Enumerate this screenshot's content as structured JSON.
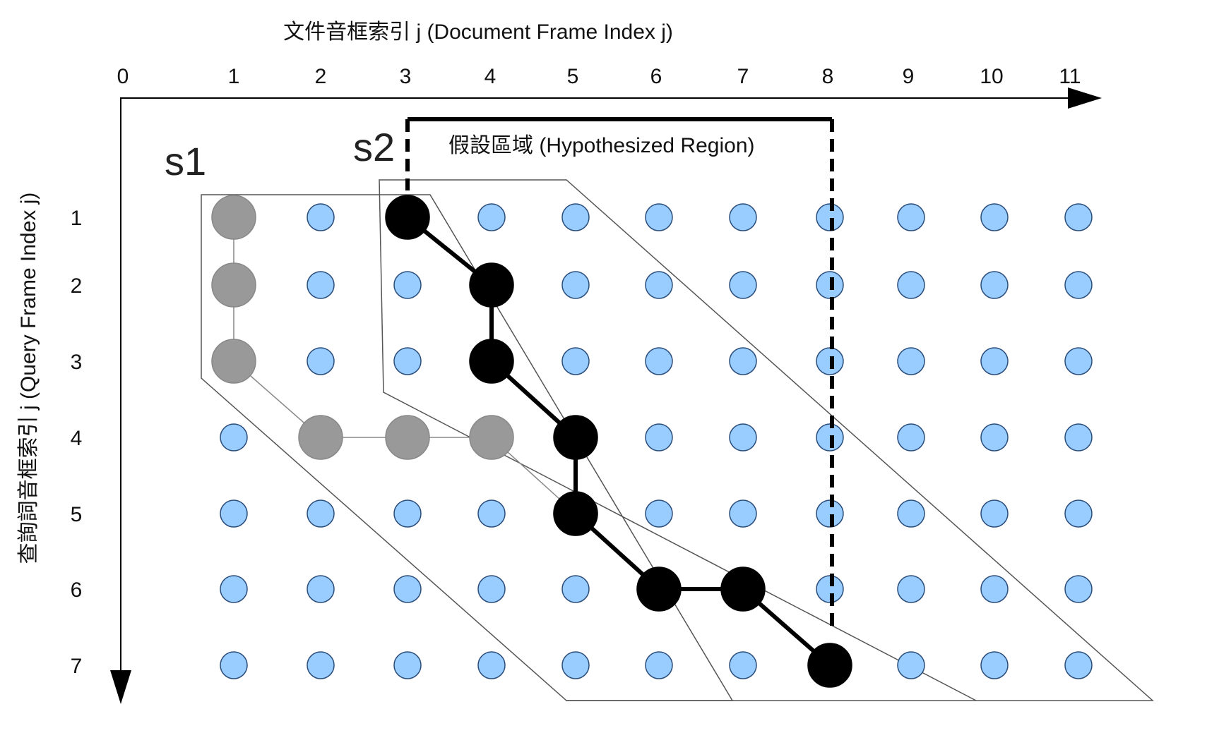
{
  "x_axis": {
    "title": "文件音框索引 j (Document Frame Index j)",
    "ticks": [
      "0",
      "1",
      "2",
      "3",
      "4",
      "5",
      "6",
      "7",
      "8",
      "9",
      "10",
      "11"
    ]
  },
  "y_axis": {
    "title": "查詢詞音框索引 j (Query Frame Index j)",
    "ticks": [
      "1",
      "2",
      "3",
      "4",
      "5",
      "6",
      "7"
    ]
  },
  "segments": [
    {
      "label": "s1",
      "start_doc_frame": 1
    },
    {
      "label": "s2",
      "start_doc_frame": 3
    }
  ],
  "hypothesized_region": {
    "label": "假設區域 (Hypothesized Region)",
    "doc_frame_start": 3,
    "doc_frame_end": 8
  },
  "grid": {
    "doc_frames": 11,
    "query_frames": 7
  },
  "paths": [
    {
      "name": "s1-alignment",
      "color": "#999999",
      "points": [
        [
          1,
          1
        ],
        [
          1,
          2
        ],
        [
          1,
          3
        ],
        [
          2,
          4
        ],
        [
          3,
          4
        ],
        [
          4,
          4
        ],
        [
          5,
          5
        ]
      ]
    },
    {
      "name": "s2-alignment",
      "color": "#000000",
      "points": [
        [
          3,
          1
        ],
        [
          4,
          2
        ],
        [
          4,
          3
        ],
        [
          5,
          4
        ],
        [
          5,
          5
        ],
        [
          6,
          6
        ],
        [
          7,
          6
        ],
        [
          8,
          7
        ]
      ]
    }
  ],
  "colors": {
    "grid_dot_fill": "#99ccff",
    "grid_dot_stroke": "#2a4d7a",
    "s1_node": "#999999",
    "s2_node": "#000000"
  }
}
